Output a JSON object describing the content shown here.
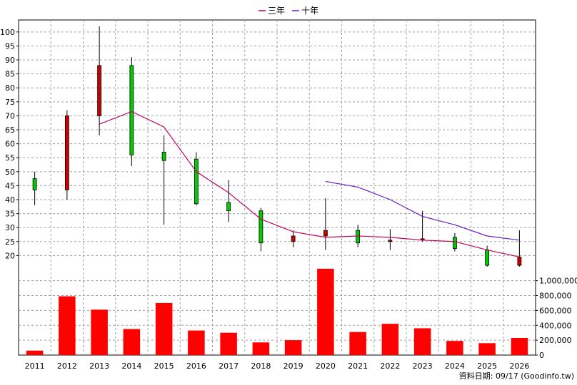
{
  "chart_data": {
    "type": "candlestick-volume",
    "legend": [
      {
        "name": "三年",
        "color": "#c00060"
      },
      {
        "name": "十年",
        "color": "#6a1fc7"
      }
    ],
    "years": [
      "2011",
      "2012",
      "2013",
      "2014",
      "2015",
      "2016",
      "2017",
      "2018",
      "2019",
      "2020",
      "2021",
      "2022",
      "2023",
      "2024",
      "2025",
      "2026"
    ],
    "candles": [
      {
        "open": 43.5,
        "close": 47.5,
        "high": 50,
        "low": 38
      },
      {
        "open": 70,
        "close": 43.5,
        "high": 72,
        "low": 40
      },
      {
        "open": 88,
        "close": 70,
        "high": 102,
        "low": 63
      },
      {
        "open": 56,
        "close": 88,
        "high": 91,
        "low": 52
      },
      {
        "open": 54,
        "close": 57,
        "high": 63,
        "low": 31
      },
      {
        "open": 38.5,
        "close": 54.5,
        "high": 57,
        "low": 38
      },
      {
        "open": 36,
        "close": 39,
        "high": 47,
        "low": 32
      },
      {
        "open": 24.5,
        "close": 36,
        "high": 37,
        "low": 21.5
      },
      {
        "open": 27,
        "close": 25,
        "high": 29,
        "low": 23
      },
      {
        "open": 29,
        "close": 27,
        "high": 40.5,
        "low": 22
      },
      {
        "open": 24.5,
        "close": 29,
        "high": 31,
        "low": 23
      },
      {
        "open": 25.5,
        "close": 25,
        "high": 29.5,
        "low": 22
      },
      {
        "open": 26,
        "close": 25.5,
        "high": 36,
        "low": 25
      },
      {
        "open": 22.5,
        "close": 26.5,
        "high": 28,
        "low": 21.5
      },
      {
        "open": 16.5,
        "close": 22,
        "high": 23.5,
        "low": 16
      },
      {
        "open": 19.5,
        "close": 16.5,
        "high": 29,
        "low": 16
      }
    ],
    "three_year": [
      null,
      null,
      67,
      71.5,
      66,
      50,
      42.5,
      33,
      28.5,
      26.5,
      27,
      26.5,
      25.5,
      25,
      22,
      19.5
    ],
    "ten_year": [
      null,
      null,
      null,
      null,
      null,
      null,
      null,
      null,
      null,
      46.5,
      44.5,
      40,
      34,
      31,
      27,
      25.5
    ],
    "volume": [
      60000,
      790000,
      610000,
      350000,
      700000,
      330000,
      300000,
      170000,
      200000,
      1160000,
      310000,
      420000,
      360000,
      190000,
      160000,
      230000
    ],
    "price_axis": {
      "min": 15,
      "max": 102,
      "ticks": [
        20,
        25,
        30,
        35,
        40,
        45,
        50,
        55,
        60,
        65,
        70,
        75,
        80,
        85,
        90,
        95,
        100
      ]
    },
    "volume_axis": {
      "min": 0,
      "max": 1150000,
      "ticks": [
        0,
        200000,
        400000,
        600000,
        800000,
        1000000
      ]
    },
    "volume_tick_labels": [
      "0",
      "200,000",
      "400,000",
      "600,000",
      "800,000",
      "1,000,000"
    ],
    "up_color": "#00cc00",
    "down_color": "#cc0000",
    "volume_color": "#ff0000",
    "footer": "資料日期: 09/17  (Goodinfo.tw)"
  }
}
